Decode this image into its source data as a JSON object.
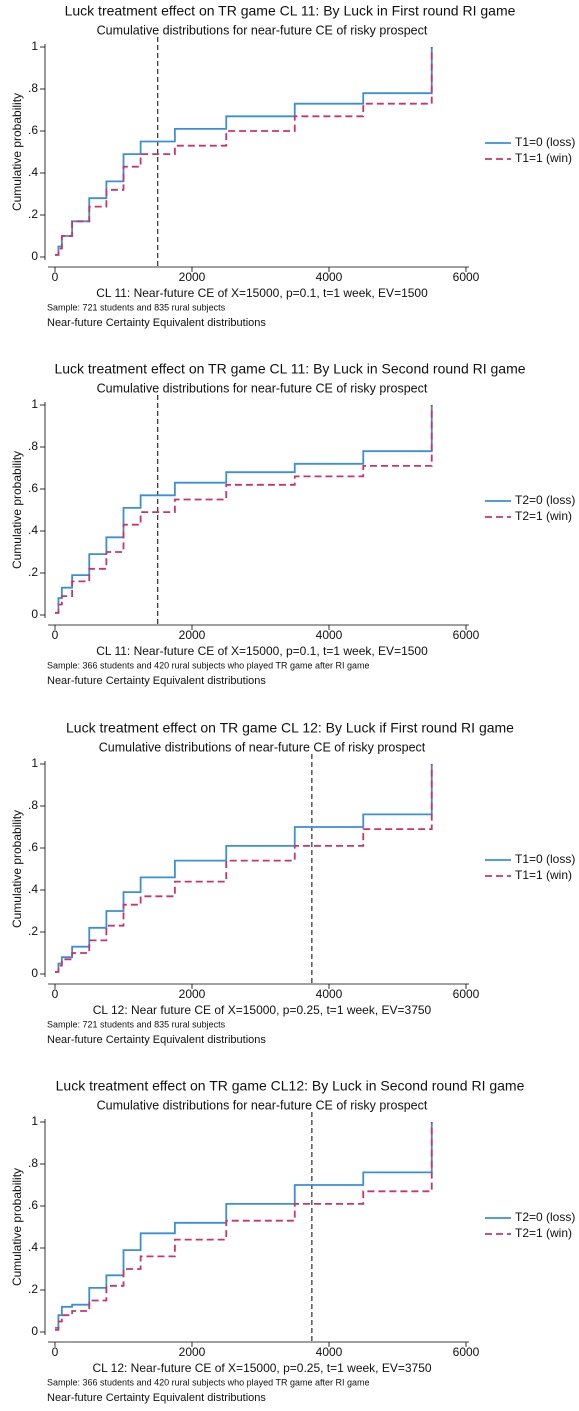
{
  "chart_data": [
    {
      "type": "line",
      "step": "post",
      "title": "Luck treatment effect on TR game CL 11: By Luck in First round RI game",
      "subtitle": "Cumulative distributions for near-future CE of risky prospect",
      "xlabel": "CL 11: Near-future CE of X=15000, p=0.1, t=1 week, EV=1500",
      "ylabel": "Cumulative probability",
      "notes": [
        "Sample: 721 students and 835 rural subjects",
        "Near-future Certainty Equivalent distributions"
      ],
      "x": [
        0,
        50,
        100,
        250,
        500,
        750,
        1000,
        1250,
        1750,
        2500,
        3500,
        4500,
        5500
      ],
      "series": [
        {
          "name": "T1=0 (loss)",
          "color": "#3a8fd9",
          "dash": false,
          "values": [
            0.01,
            0.05,
            0.1,
            0.17,
            0.28,
            0.36,
            0.49,
            0.55,
            0.61,
            0.67,
            0.73,
            0.78,
            1
          ]
        },
        {
          "name": "T1=1 (win)",
          "color": "#c9346b",
          "dash": true,
          "values": [
            0.01,
            0.04,
            0.1,
            0.17,
            0.24,
            0.32,
            0.43,
            0.49,
            0.53,
            0.6,
            0.67,
            0.73,
            1
          ]
        }
      ],
      "reference_x": 1500,
      "xlim": [
        0,
        6000
      ],
      "ylim": [
        0,
        1
      ],
      "xticks": [
        0,
        2000,
        4000,
        6000
      ],
      "yticks": [
        0,
        {
          "value": 0.2,
          "label": ".2"
        },
        {
          "value": 0.4,
          "label": ".4"
        },
        {
          "value": 0.6,
          "label": ".6"
        },
        {
          "value": 0.8,
          "label": ".8"
        },
        1
      ],
      "legend_position": "right"
    },
    {
      "type": "line",
      "step": "post",
      "title": "Luck treatment effect on TR game CL 11: By Luck in Second round RI game",
      "subtitle": "Cumulative distributions for near-future CE of risky prospect",
      "xlabel": "CL 11: Near-future CE of X=15000, p=0.1, t=1 week, EV=1500",
      "ylabel": "Cumulative probability",
      "notes": [
        "Sample: 366 students and 420 rural subjects who played TR game after RI game",
        "Near-future Certainty Equivalent distributions"
      ],
      "x": [
        0,
        50,
        100,
        250,
        500,
        750,
        1000,
        1250,
        1750,
        2500,
        3500,
        4500,
        5500
      ],
      "series": [
        {
          "name": "T2=0 (loss)",
          "color": "#3a8fd9",
          "dash": false,
          "values": [
            0.01,
            0.08,
            0.13,
            0.19,
            0.29,
            0.37,
            0.51,
            0.57,
            0.63,
            0.68,
            0.72,
            0.78,
            1
          ]
        },
        {
          "name": "T2=1 (win)",
          "color": "#c9346b",
          "dash": true,
          "values": [
            0.01,
            0.05,
            0.09,
            0.16,
            0.22,
            0.3,
            0.43,
            0.49,
            0.55,
            0.62,
            0.66,
            0.71,
            1
          ]
        }
      ],
      "reference_x": 1500,
      "xlim": [
        0,
        6000
      ],
      "ylim": [
        0,
        1
      ],
      "xticks": [
        0,
        2000,
        4000,
        6000
      ],
      "yticks": [
        0,
        {
          "value": 0.2,
          "label": ".2"
        },
        {
          "value": 0.4,
          "label": ".4"
        },
        {
          "value": 0.6,
          "label": ".6"
        },
        {
          "value": 0.8,
          "label": ".8"
        },
        1
      ],
      "legend_position": "right"
    },
    {
      "type": "line",
      "step": "post",
      "title": "Luck treatment  effect on TR game CL 12: By Luck if First round RI game",
      "subtitle": "Cumulative distributions of near-future CE of risky prospect",
      "xlabel": "CL 12: Near future CE of X=15000, p=0.25, t=1 week, EV=3750",
      "ylabel": "Cumulative probability",
      "notes": [
        "Sample: 721 students and 835 rural subjects",
        "Near-future Certainty Equivalent distributions"
      ],
      "x": [
        0,
        50,
        100,
        250,
        500,
        750,
        1000,
        1250,
        1750,
        2500,
        3500,
        4500,
        5500
      ],
      "series": [
        {
          "name": "T1=0 (loss)",
          "color": "#3a8fd9",
          "dash": false,
          "values": [
            0.01,
            0.05,
            0.08,
            0.13,
            0.22,
            0.3,
            0.39,
            0.46,
            0.54,
            0.61,
            0.7,
            0.76,
            1
          ]
        },
        {
          "name": "T1=1 (win)",
          "color": "#c9346b",
          "dash": true,
          "values": [
            0.01,
            0.04,
            0.07,
            0.1,
            0.16,
            0.23,
            0.33,
            0.37,
            0.44,
            0.54,
            0.61,
            0.69,
            1
          ]
        }
      ],
      "reference_x": 3750,
      "xlim": [
        0,
        6000
      ],
      "ylim": [
        0,
        1
      ],
      "xticks": [
        0,
        2000,
        4000,
        6000
      ],
      "yticks": [
        0,
        {
          "value": 0.2,
          "label": ".2"
        },
        {
          "value": 0.4,
          "label": ".4"
        },
        {
          "value": 0.6,
          "label": ".6"
        },
        {
          "value": 0.8,
          "label": ".8"
        },
        1
      ],
      "legend_position": "right"
    },
    {
      "type": "line",
      "step": "post",
      "title": "Luck treatment effect on TR game CL12: By Luck in Second round RI game",
      "subtitle": "Cumulative distributions for near-future CE of risky prospect",
      "xlabel": "CL 12: Near-future CE of X=15000, p=0.25, t=1 week, EV=3750",
      "ylabel": "Cumulative probability",
      "notes": [
        "Sample: 366 students and 420 rural subjects who played TR game after RI game",
        "Near-future Certainty Equivalent distributions"
      ],
      "x": [
        0,
        50,
        100,
        250,
        500,
        750,
        1000,
        1250,
        1750,
        2500,
        3500,
        4500,
        5500
      ],
      "series": [
        {
          "name": "T2=0 (loss)",
          "color": "#3a8fd9",
          "dash": false,
          "values": [
            0.02,
            0.08,
            0.12,
            0.13,
            0.21,
            0.27,
            0.39,
            0.47,
            0.52,
            0.61,
            0.7,
            0.76,
            1
          ]
        },
        {
          "name": "T2=1 (win)",
          "color": "#c9346b",
          "dash": true,
          "values": [
            0.01,
            0.05,
            0.08,
            0.1,
            0.15,
            0.22,
            0.3,
            0.36,
            0.44,
            0.53,
            0.61,
            0.67,
            1
          ]
        }
      ],
      "reference_x": 3750,
      "xlim": [
        0,
        6000
      ],
      "ylim": [
        0,
        1
      ],
      "xticks": [
        0,
        2000,
        4000,
        6000
      ],
      "yticks": [
        0,
        {
          "value": 0.2,
          "label": ".2"
        },
        {
          "value": 0.4,
          "label": ".4"
        },
        {
          "value": 0.6,
          "label": ".6"
        },
        {
          "value": 0.8,
          "label": ".8"
        },
        1
      ],
      "legend_position": "right"
    }
  ]
}
